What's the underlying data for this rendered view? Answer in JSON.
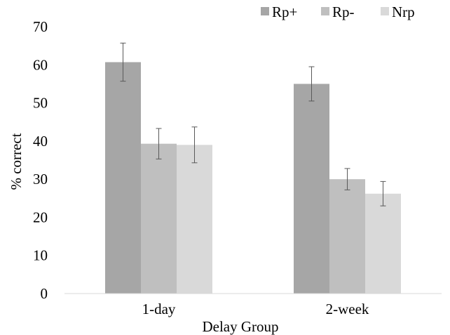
{
  "chart_data": {
    "type": "bar",
    "title": "",
    "xlabel": "Delay Group",
    "ylabel": "% correct",
    "ylim": [
      0,
      70
    ],
    "yticks": [
      "0",
      "10",
      "20",
      "30",
      "40",
      "50",
      "60",
      "70"
    ],
    "grid": false,
    "legend_position": "top-right",
    "categories": [
      "1-day",
      "2-week"
    ],
    "series": [
      {
        "name": "Rp+",
        "color": "#a6a6a6",
        "values": [
          60.7,
          55.0
        ],
        "errors": [
          5.0,
          4.5
        ]
      },
      {
        "name": "Rp-",
        "color": "#bfbfbf",
        "values": [
          39.3,
          30.0
        ],
        "errors": [
          4.0,
          2.8
        ]
      },
      {
        "name": "Nrp",
        "color": "#d9d9d9",
        "values": [
          39.0,
          26.2
        ],
        "errors": [
          4.7,
          3.2
        ]
      }
    ]
  }
}
